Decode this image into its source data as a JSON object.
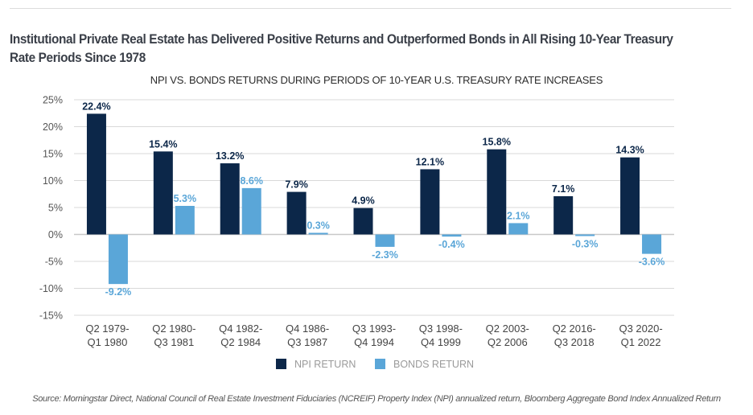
{
  "heading": "Institutional Private Real Estate has Delivered Positive Returns and Outperformed Bonds in All Rising 10-Year Treasury Rate Periods Since 1978",
  "source": "Source: Morningstar Direct, National Council of Real Estate Investment Fiduciaries (NCREIF) Property Index (NPI) annualized return, Bloomberg Aggregate Bond Index Annualized Return",
  "colors": {
    "npi": "#0c2749",
    "bonds": "#5aa6d8",
    "grid": "#d9d9d9",
    "axis_text": "#555555"
  },
  "chart_data": {
    "type": "bar",
    "title": "NPI VS. BONDS RETURNS DURING PERIODS OF 10-YEAR U.S. TREASURY RATE INCREASES",
    "xlabel": "",
    "ylabel": "",
    "ylim": [
      -15,
      25
    ],
    "yticks": [
      25,
      20,
      15,
      10,
      5,
      0,
      -5,
      -10,
      -15
    ],
    "ytick_labels": [
      "25%",
      "20%",
      "15%",
      "10%",
      "5%",
      "0%",
      "-5%",
      "-10%",
      "-15%"
    ],
    "grid": true,
    "legend_position": "bottom-center",
    "categories": [
      [
        "Q2 1979-",
        "Q1 1980"
      ],
      [
        "Q2 1980-",
        "Q3 1981"
      ],
      [
        "Q4 1982-",
        "Q2 1984"
      ],
      [
        "Q4 1986-",
        "Q3 1987"
      ],
      [
        "Q3 1993-",
        "Q4 1994"
      ],
      [
        "Q3 1998-",
        "Q4 1999"
      ],
      [
        "Q2 2003-",
        "Q2 2006"
      ],
      [
        "Q2 2016-",
        "Q3 2018"
      ],
      [
        "Q3 2020-",
        "Q1 2022"
      ]
    ],
    "series": [
      {
        "name": "NPI RETURN",
        "key": "npi",
        "values": [
          22.4,
          15.4,
          13.2,
          7.9,
          4.9,
          12.1,
          15.8,
          7.1,
          14.3
        ],
        "labels": [
          "22.4%",
          "15.4%",
          "13.2%",
          "7.9%",
          "4.9%",
          "12.1%",
          "15.8%",
          "7.1%",
          "14.3%"
        ]
      },
      {
        "name": "BONDS RETURN",
        "key": "bonds",
        "values": [
          -9.2,
          5.3,
          8.6,
          0.3,
          -2.3,
          -0.4,
          2.1,
          -0.3,
          -3.6
        ],
        "labels": [
          "-9.2%",
          "5.3%",
          "8.6%",
          "0.3%",
          "-2.3%",
          "-0.4%",
          "2.1%",
          "-0.3%",
          "-3.6%"
        ]
      }
    ]
  }
}
